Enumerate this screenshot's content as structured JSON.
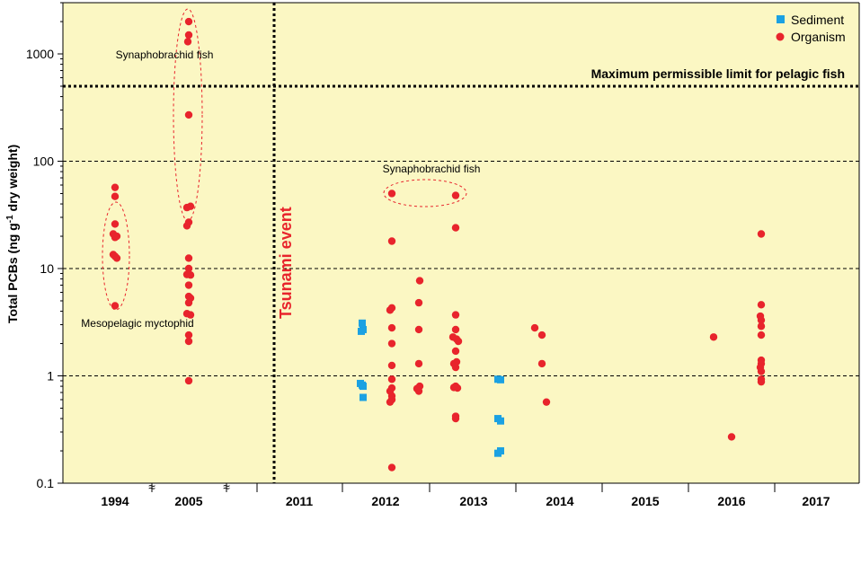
{
  "chart_data": {
    "type": "scatter",
    "ylabel": "Total PCBs (ng g-1 dry weight)",
    "ylabel_parts": [
      "Total PCBs (ng g",
      "-1",
      " dry weight)"
    ],
    "yscale": "log",
    "ylim": [
      0.1,
      3000
    ],
    "y_ticks": [
      0.1,
      1,
      10,
      100,
      1000
    ],
    "y_tick_labels": [
      "0.1",
      "1",
      "10",
      "100",
      "1000"
    ],
    "y_gridlines": [
      1,
      10,
      100
    ],
    "x_categories": [
      "1994",
      "2005",
      "2011",
      "2012",
      "2013",
      "2014",
      "2015",
      "2016",
      "2017"
    ],
    "axis_break_symbols": [
      "≈",
      "≈"
    ],
    "background_color": "#FBF7C3",
    "legend": {
      "placement": "top-right",
      "items": [
        {
          "label": "Sediment",
          "color": "#1BA1E2",
          "marker": "square"
        },
        {
          "label": "Organism",
          "color": "#E8242C",
          "marker": "circle"
        }
      ]
    },
    "reference_line": {
      "y": 500,
      "label": "Maximum permissible limit for pelagic fish"
    },
    "event_line": {
      "category": "2011",
      "label": "Tsunami event",
      "color": "#E8242C"
    },
    "annotations": [
      {
        "text": "Synaphobrachid fish",
        "near": "2005"
      },
      {
        "text": "Mesopelagic myctophid",
        "near": "1994"
      },
      {
        "text": "Synaphobrachid fish",
        "near": "2012-2013"
      }
    ],
    "series": [
      {
        "name": "Sediment",
        "color": "#1BA1E2",
        "points": [
          {
            "x": "2012",
            "y": 3.1
          },
          {
            "x": "2012",
            "y": 2.7
          },
          {
            "x": "2012",
            "y": 2.6
          },
          {
            "x": "2012",
            "y": 0.85
          },
          {
            "x": "2012",
            "y": 0.82
          },
          {
            "x": "2012",
            "y": 0.8
          },
          {
            "x": "2012",
            "y": 0.63
          },
          {
            "x": "2013",
            "y": 0.93
          },
          {
            "x": "2013",
            "y": 0.92
          },
          {
            "x": "2013",
            "y": 0.4
          },
          {
            "x": "2013",
            "y": 0.38
          },
          {
            "x": "2013",
            "y": 0.2
          },
          {
            "x": "2013",
            "y": 0.19
          }
        ]
      },
      {
        "name": "Organism",
        "color": "#E8242C",
        "points": [
          {
            "x": "1994",
            "y": 57
          },
          {
            "x": "1994",
            "y": 47
          },
          {
            "x": "1994",
            "y": 26
          },
          {
            "x": "1994",
            "y": 21
          },
          {
            "x": "1994",
            "y": 20
          },
          {
            "x": "1994",
            "y": 19.5
          },
          {
            "x": "1994",
            "y": 13.5
          },
          {
            "x": "1994",
            "y": 13
          },
          {
            "x": "1994",
            "y": 12.5
          },
          {
            "x": "1994",
            "y": 4.5
          },
          {
            "x": "2005",
            "y": 2000
          },
          {
            "x": "2005",
            "y": 1500
          },
          {
            "x": "2005",
            "y": 1300
          },
          {
            "x": "2005",
            "y": 270
          },
          {
            "x": "2005",
            "y": 38
          },
          {
            "x": "2005",
            "y": 37
          },
          {
            "x": "2005",
            "y": 27
          },
          {
            "x": "2005",
            "y": 25
          },
          {
            "x": "2005",
            "y": 12.5
          },
          {
            "x": "2005",
            "y": 10
          },
          {
            "x": "2005",
            "y": 8.8
          },
          {
            "x": "2005",
            "y": 8.7
          },
          {
            "x": "2005",
            "y": 7
          },
          {
            "x": "2005",
            "y": 5.5
          },
          {
            "x": "2005",
            "y": 5.3
          },
          {
            "x": "2005",
            "y": 4.8
          },
          {
            "x": "2005",
            "y": 3.8
          },
          {
            "x": "2005",
            "y": 3.7
          },
          {
            "x": "2005",
            "y": 2.4
          },
          {
            "x": "2005",
            "y": 2.1
          },
          {
            "x": "2005",
            "y": 0.9
          },
          {
            "x": "2012",
            "y": 50
          },
          {
            "x": "2012",
            "y": 18
          },
          {
            "x": "2012",
            "y": 4.3
          },
          {
            "x": "2012",
            "y": 4.1
          },
          {
            "x": "2012",
            "y": 2.8
          },
          {
            "x": "2012",
            "y": 2
          },
          {
            "x": "2012",
            "y": 1.25
          },
          {
            "x": "2012",
            "y": 0.93
          },
          {
            "x": "2012",
            "y": 0.77
          },
          {
            "x": "2012",
            "y": 0.72
          },
          {
            "x": "2012",
            "y": 0.65
          },
          {
            "x": "2012",
            "y": 0.6
          },
          {
            "x": "2012",
            "y": 0.57
          },
          {
            "x": "2012",
            "y": 0.14
          },
          {
            "x": "2012",
            "y": 7.7
          },
          {
            "x": "2012",
            "y": 4.8
          },
          {
            "x": "2012",
            "y": 2.7
          },
          {
            "x": "2012",
            "y": 1.3
          },
          {
            "x": "2012",
            "y": 0.8
          },
          {
            "x": "2012",
            "y": 0.76
          },
          {
            "x": "2012",
            "y": 0.72
          },
          {
            "x": "2013",
            "y": 48
          },
          {
            "x": "2013",
            "y": 24
          },
          {
            "x": "2013",
            "y": 3.7
          },
          {
            "x": "2013",
            "y": 2.7
          },
          {
            "x": "2013",
            "y": 2.3
          },
          {
            "x": "2013",
            "y": 2.2
          },
          {
            "x": "2013",
            "y": 2.1
          },
          {
            "x": "2013",
            "y": 1.7
          },
          {
            "x": "2013",
            "y": 1.35
          },
          {
            "x": "2013",
            "y": 1.3
          },
          {
            "x": "2013",
            "y": 1.2
          },
          {
            "x": "2013",
            "y": 0.8
          },
          {
            "x": "2013",
            "y": 0.78
          },
          {
            "x": "2013",
            "y": 0.77
          },
          {
            "x": "2013",
            "y": 0.42
          },
          {
            "x": "2013",
            "y": 0.4
          },
          {
            "x": "2014",
            "y": 2.8
          },
          {
            "x": "2014",
            "y": 2.4
          },
          {
            "x": "2014",
            "y": 1.3
          },
          {
            "x": "2014",
            "y": 0.57
          },
          {
            "x": "2016",
            "y": 2.3
          },
          {
            "x": "2016",
            "y": 21
          },
          {
            "x": "2016",
            "y": 4.6
          },
          {
            "x": "2016",
            "y": 3.6
          },
          {
            "x": "2016",
            "y": 3.3
          },
          {
            "x": "2016",
            "y": 2.9
          },
          {
            "x": "2016",
            "y": 2.4
          },
          {
            "x": "2016",
            "y": 1.4
          },
          {
            "x": "2016",
            "y": 1.3
          },
          {
            "x": "2016",
            "y": 1.2
          },
          {
            "x": "2016",
            "y": 1.1
          },
          {
            "x": "2016",
            "y": 0.93
          },
          {
            "x": "2016",
            "y": 0.88
          },
          {
            "x": "2016",
            "y": 0.27
          }
        ]
      }
    ]
  }
}
